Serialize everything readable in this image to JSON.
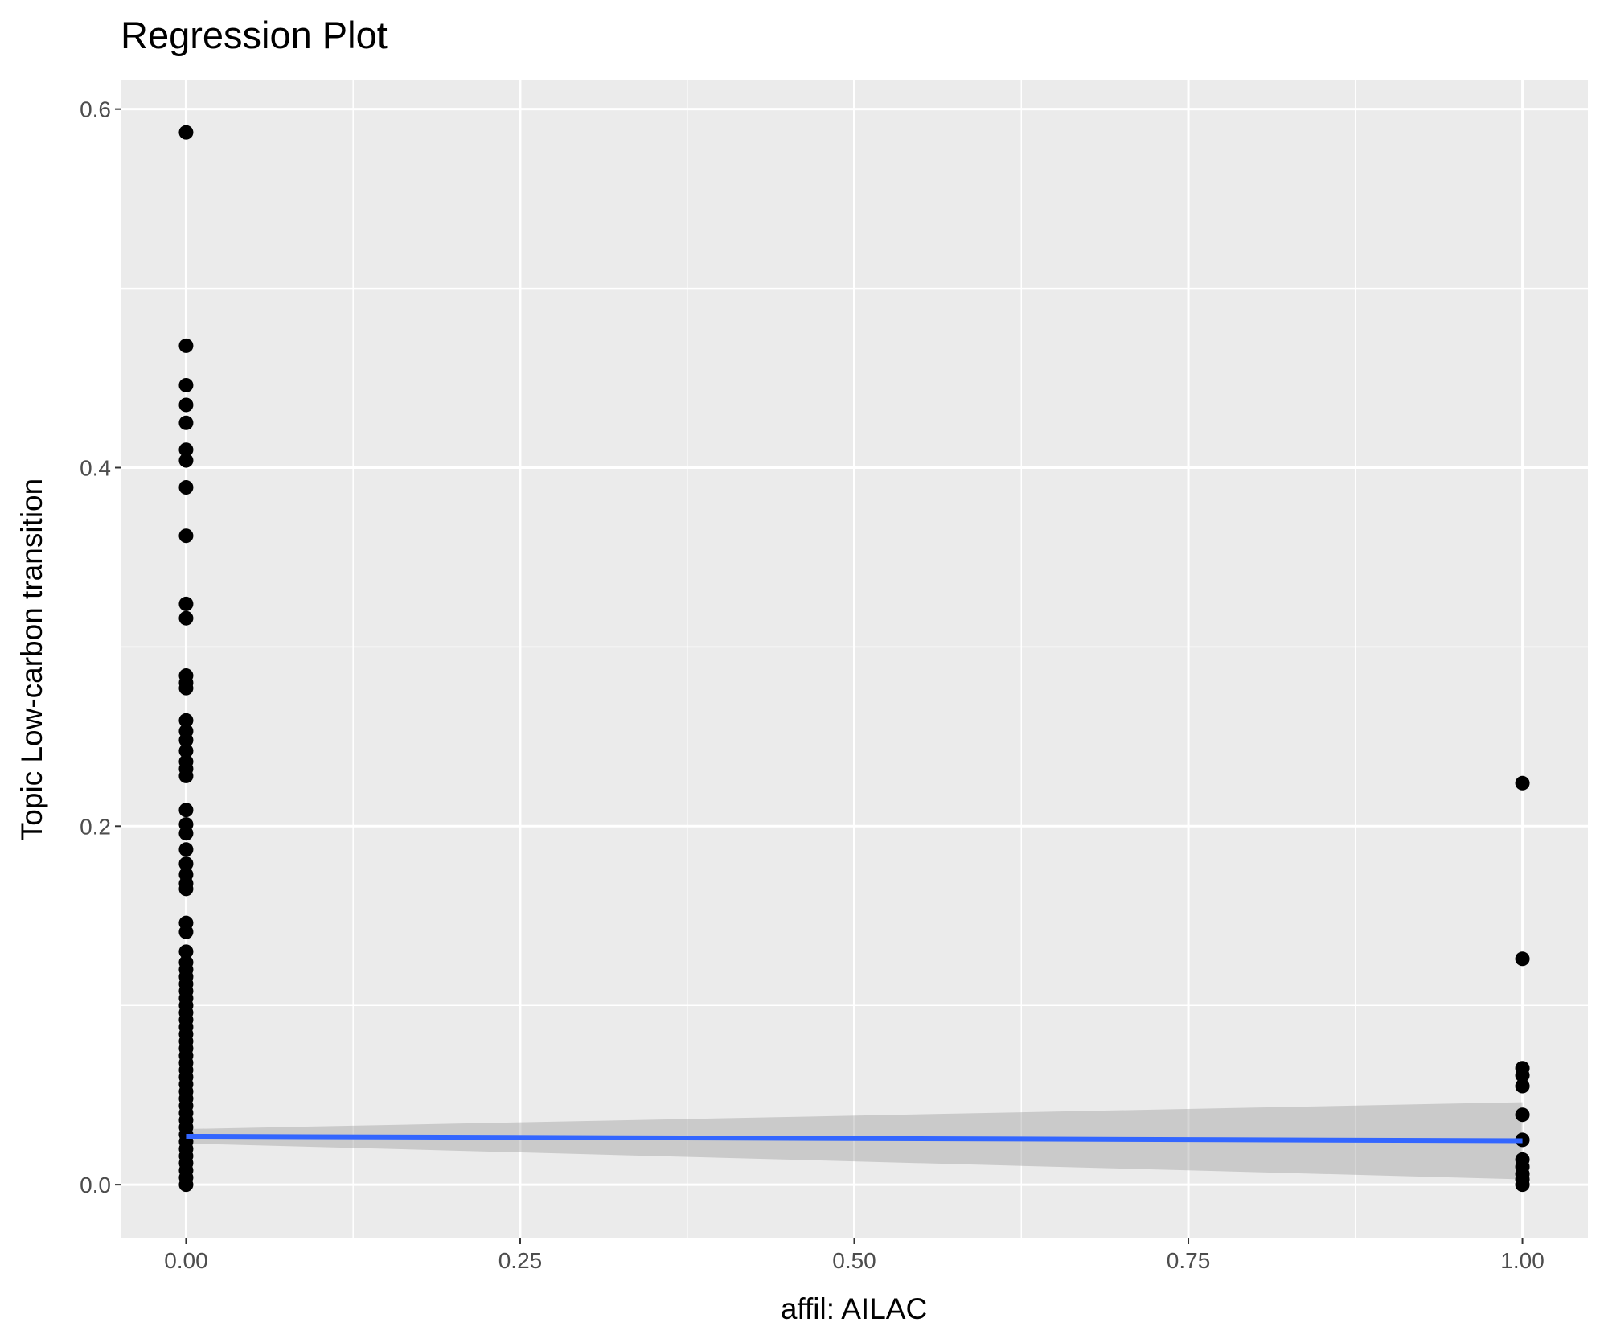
{
  "chart_data": {
    "type": "scatter",
    "title": "Regression Plot",
    "xlabel": "affil: AILAC",
    "ylabel": "Topic Low-carbon transition",
    "xlim": [
      -0.049,
      1.049
    ],
    "ylim": [
      -0.03,
      0.616
    ],
    "x_ticks": [
      0,
      0.25,
      0.5,
      0.75,
      1
    ],
    "x_tick_labels": [
      "0.00",
      "0.25",
      "0.50",
      "0.75",
      "1.00"
    ],
    "y_ticks": [
      0,
      0.2,
      0.4,
      0.6
    ],
    "y_tick_labels": [
      "0.0",
      "0.2",
      "0.4",
      "0.6"
    ],
    "grid": true,
    "point_color": "#000000",
    "line_color": "#3366FF",
    "ci_color": "#999999",
    "panel_background": "#EBEBEB",
    "series": [
      {
        "x": 0,
        "values": [
          0.587,
          0.468,
          0.446,
          0.435,
          0.425,
          0.41,
          0.404,
          0.389,
          0.362,
          0.324,
          0.316,
          0.284,
          0.28,
          0.277,
          0.259,
          0.253,
          0.248,
          0.242,
          0.236,
          0.232,
          0.228,
          0.209,
          0.201,
          0.196,
          0.187,
          0.179,
          0.173,
          0.168,
          0.165,
          0.146,
          0.141,
          0.13,
          0.124,
          0.12,
          0.116,
          0.112,
          0.108,
          0.104,
          0.1,
          0.096,
          0.092,
          0.088,
          0.084,
          0.08,
          0.076,
          0.072,
          0.068,
          0.064,
          0.06,
          0.056,
          0.052,
          0.048,
          0.044,
          0.04,
          0.036,
          0.032,
          0.028,
          0.024,
          0.02,
          0.016,
          0.012,
          0.008,
          0.004,
          0.0
        ]
      },
      {
        "x": 1,
        "values": [
          0.224,
          0.126,
          0.065,
          0.061,
          0.055,
          0.039,
          0.025,
          0.014,
          0.01,
          0.006,
          0.003,
          0.0
        ]
      }
    ],
    "regression": {
      "x": [
        0,
        1
      ],
      "y": [
        0.027,
        0.0245
      ],
      "ci_lower": [
        0.023,
        0.003
      ],
      "ci_upper": [
        0.031,
        0.046
      ]
    }
  }
}
